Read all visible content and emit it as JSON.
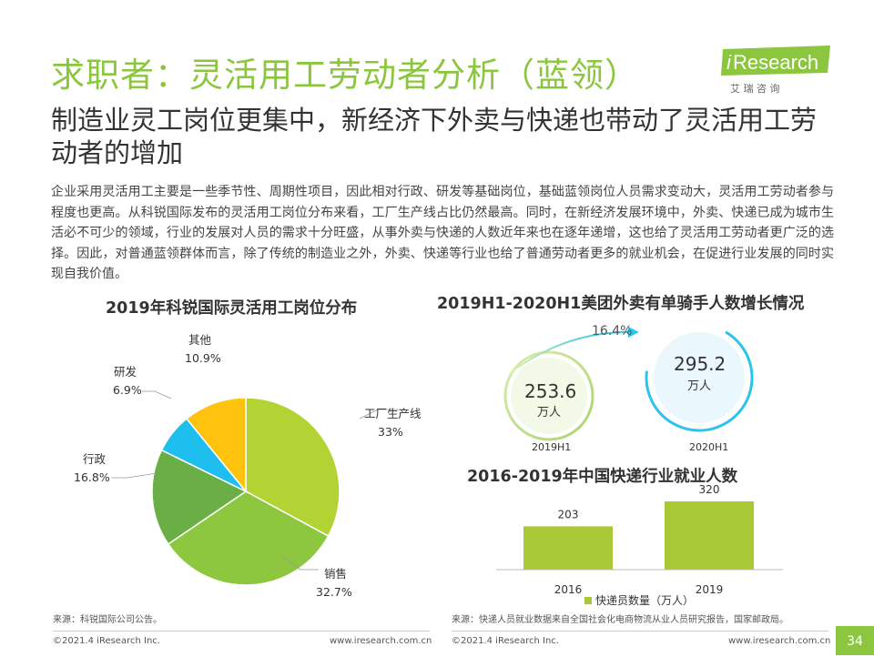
{
  "page": {
    "title": "求职者：灵活用工劳动者分析（蓝领）",
    "subtitle": "制造业灵工岗位更集中，新经济下外卖与快递也带动了灵活用工劳动者的增加",
    "body": "企业采用灵活用工主要是一些季节性、周期性项目，因此相对行政、研发等基础岗位，基础蓝领岗位人员需求变动大，灵活用工劳动者参与程度也更高。从科锐国际发布的灵活用工岗位分布来看，工厂生产线占比仍然最高。同时，在新经济发展环境中，外卖、快递已成为城市生活必不可少的领域，行业的发展对人员的需求十分旺盛，从事外卖与快递的人数近年来也在逐年递增，这也给了灵活用工劳动者更广泛的选择。因此，对普通蓝领群体而言，除了传统的制造业之外，外卖、快递等行业也给了普通劳动者更多的就业机会，在促进行业发展的同时实现自我价值。",
    "page_number": "34"
  },
  "logo": {
    "brand_i": "i",
    "brand_rest": "Research",
    "cn": "艾 瑞 咨 询"
  },
  "footer": {
    "source_left": "来源：科锐国际公司公告。",
    "source_right": "来源：快递人员就业数据来自全国社会化电商物流从业人员研究报告，国家邮政局。",
    "copyright_left": "©2021.4 iResearch Inc.",
    "url_left": "www.iresearch.com.cn",
    "copyright_right": "©2021.4 iResearch Inc.",
    "url_right": "www.iresearch.com.cn"
  },
  "colors": {
    "accent": "#8cc63f",
    "pie_factory": "#b3d335",
    "pie_sales": "#8dc63f",
    "pie_admin": "#6aaf45",
    "pie_rd": "#1ebfee",
    "pie_other": "#ffc20e",
    "bubble_ring_light": "#c9e39a",
    "bubble_ring_blue": "#2bc4ea",
    "bubble_fill_blue": "#eaf7fc",
    "bar": "#a8c836"
  },
  "chart_data": [
    {
      "type": "pie",
      "title": "2019年科锐国际灵活用工岗位分布",
      "slices": [
        {
          "name": "工厂生产线",
          "value": 33,
          "label": "33%"
        },
        {
          "name": "销售",
          "value": 32.7,
          "label": "32.7%"
        },
        {
          "name": "行政",
          "value": 16.8,
          "label": "16.8%"
        },
        {
          "name": "研发",
          "value": 6.9,
          "label": "6.9%"
        },
        {
          "name": "其他",
          "value": 10.9,
          "label": "10.9%"
        }
      ]
    },
    {
      "type": "bubble",
      "title": "2019H1-2020H1美团外卖有单骑手人数增长情况",
      "categories": [
        "2019H1",
        "2020H1"
      ],
      "values": [
        253.6,
        295.2
      ],
      "value_labels": [
        "253.6",
        "295.2"
      ],
      "unit": "万人",
      "growth_label": "16.4%"
    },
    {
      "type": "bar",
      "title": "2016-2019年中国快递行业就业人数",
      "categories": [
        "2016",
        "2019"
      ],
      "values": [
        203,
        320
      ],
      "series_name": "快递员数量（万人）"
    }
  ]
}
